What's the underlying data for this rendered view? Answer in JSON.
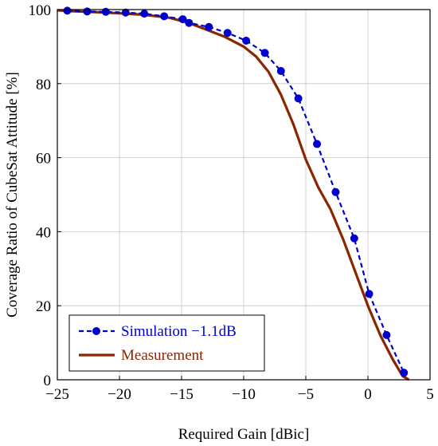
{
  "chart_data": {
    "type": "line",
    "title": "",
    "xlabel": "Required Gain [dBic]",
    "ylabel": "Coverage Ratio of CubeSat Attitude [%]",
    "xlim": [
      -25,
      5
    ],
    "ylim": [
      0,
      100
    ],
    "xticks": [
      -25,
      -20,
      -15,
      -10,
      -5,
      0,
      5
    ],
    "yticks": [
      0,
      20,
      40,
      60,
      80,
      100
    ],
    "grid": true,
    "legend_position": "bottom-left",
    "series": [
      {
        "name": "Simulation −1.1dB",
        "color": "#0000cc",
        "style": "dashed-with-markers",
        "x": [
          -24.2,
          -22.6,
          -21.1,
          -19.5,
          -18.0,
          -16.4,
          -14.9,
          -14.4,
          -12.8,
          -11.3,
          -9.8,
          -8.3,
          -7.0,
          -5.6,
          -4.1,
          -2.6,
          -1.1,
          0.1,
          1.5,
          2.9
        ],
        "y": [
          99.7,
          99.5,
          99.4,
          99.2,
          98.9,
          98.2,
          97.4,
          96.4,
          95.3,
          93.7,
          91.6,
          88.3,
          83.4,
          76.0,
          63.7,
          50.7,
          38.2,
          23.2,
          12.1,
          1.9
        ]
      },
      {
        "name": "Measurement",
        "color": "#8b2500",
        "style": "solid",
        "x": [
          -25.0,
          -24.0,
          -22.0,
          -20.0,
          -18.0,
          -16.0,
          -14.5,
          -13.0,
          -11.5,
          -10.0,
          -9.0,
          -8.0,
          -7.0,
          -6.0,
          -5.0,
          -4.0,
          -3.0,
          -2.0,
          -1.0,
          0.0,
          1.0,
          2.0,
          2.8,
          3.3
        ],
        "y": [
          99.8,
          99.6,
          99.3,
          99.0,
          98.6,
          97.8,
          96.5,
          94.6,
          92.6,
          90.0,
          87.3,
          83.2,
          77.0,
          69.0,
          59.5,
          52.0,
          46.0,
          38.0,
          29.0,
          20.0,
          12.0,
          5.5,
          1.0,
          0.0
        ]
      }
    ]
  }
}
